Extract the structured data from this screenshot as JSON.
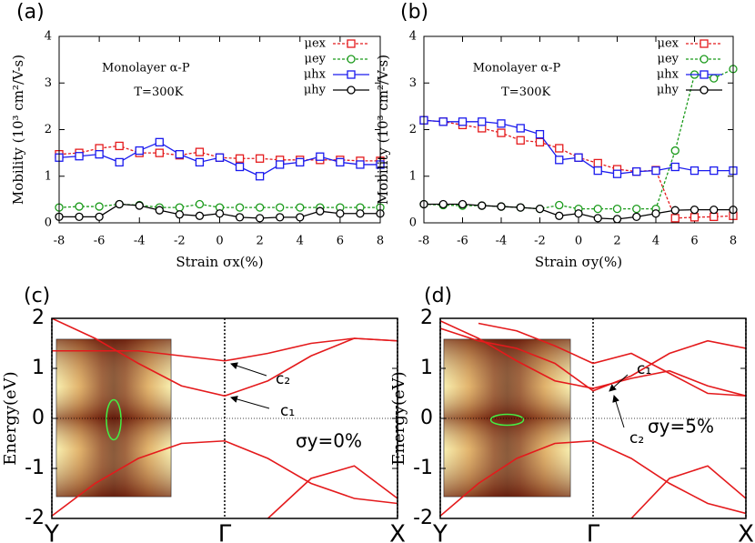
{
  "chart_data": [
    {
      "type": "line",
      "panel_label": "(a)",
      "x_label": "Strain σx(%)",
      "y_label": "Mobility (10³ cm²/V-s)",
      "annotations": [
        "Monolayer α-P",
        "T=300K"
      ],
      "legend": "upper right",
      "x": [
        -8,
        -7,
        -6,
        -5,
        -4,
        -3,
        -2,
        -1,
        0,
        1,
        2,
        3,
        4,
        5,
        6,
        7,
        8
      ],
      "xlim": [
        -8,
        8
      ],
      "xticks": [
        -8,
        -6,
        -4,
        -2,
        0,
        2,
        4,
        6,
        8
      ],
      "ylim": [
        0,
        4
      ],
      "yticks": [
        0,
        1,
        2,
        3,
        4
      ],
      "series": [
        {
          "name": "μex",
          "color": "#e41a1c",
          "marker": "square",
          "line_style": "dashed",
          "values": [
            1.47,
            1.5,
            1.6,
            1.65,
            1.5,
            1.5,
            1.45,
            1.52,
            1.4,
            1.38,
            1.38,
            1.35,
            1.35,
            1.35,
            1.35,
            1.33,
            1.33
          ]
        },
        {
          "name": "μey",
          "color": "#1a9a1a",
          "marker": "circle",
          "line_style": "dashed",
          "values": [
            0.33,
            0.35,
            0.35,
            0.4,
            0.38,
            0.33,
            0.33,
            0.4,
            0.33,
            0.33,
            0.33,
            0.33,
            0.33,
            0.33,
            0.33,
            0.33,
            0.33
          ]
        },
        {
          "name": "μhx",
          "color": "#1a1aee",
          "marker": "square",
          "line_style": "solid",
          "values": [
            1.4,
            1.43,
            1.47,
            1.3,
            1.55,
            1.73,
            1.47,
            1.3,
            1.4,
            1.2,
            1.0,
            1.25,
            1.3,
            1.42,
            1.3,
            1.25,
            1.25
          ]
        },
        {
          "name": "μhy",
          "color": "#000000",
          "marker": "circle",
          "line_style": "solid",
          "values": [
            0.13,
            0.13,
            0.13,
            0.4,
            0.37,
            0.27,
            0.18,
            0.15,
            0.2,
            0.12,
            0.1,
            0.12,
            0.12,
            0.25,
            0.2,
            0.2,
            0.2
          ]
        }
      ]
    },
    {
      "type": "line",
      "panel_label": "(b)",
      "x_label": "Strain σy(%)",
      "y_label": "Mobility (10³ cm²/V-s)",
      "annotations": [
        "Monolayer α-P",
        "T=300K"
      ],
      "legend": "upper right",
      "x": [
        -8,
        -7,
        -6,
        -5,
        -4,
        -3,
        -2,
        -1,
        0,
        1,
        2,
        3,
        4,
        5,
        6,
        7,
        8
      ],
      "xlim": [
        -8,
        8
      ],
      "xticks": [
        -8,
        -6,
        -4,
        -2,
        0,
        2,
        4,
        6,
        8
      ],
      "ylim": [
        0,
        4
      ],
      "yticks": [
        0,
        1,
        2,
        3,
        4
      ],
      "series": [
        {
          "name": "μex",
          "color": "#e41a1c",
          "marker": "square",
          "line_style": "dashed",
          "values": [
            2.2,
            2.17,
            2.1,
            2.03,
            1.93,
            1.77,
            1.73,
            1.6,
            1.4,
            1.28,
            1.15,
            1.1,
            1.13,
            0.1,
            0.12,
            0.13,
            0.15
          ]
        },
        {
          "name": "μey",
          "color": "#1a9a1a",
          "marker": "circle",
          "line_style": "dashed",
          "values": [
            0.4,
            0.38,
            0.37,
            0.37,
            0.35,
            0.33,
            0.3,
            0.38,
            0.3,
            0.3,
            0.3,
            0.3,
            0.3,
            1.55,
            3.18,
            3.1,
            3.3
          ]
        },
        {
          "name": "μhx",
          "color": "#1a1aee",
          "marker": "square",
          "line_style": "solid",
          "values": [
            2.2,
            2.17,
            2.17,
            2.17,
            2.13,
            2.03,
            1.9,
            1.35,
            1.4,
            1.12,
            1.05,
            1.1,
            1.12,
            1.2,
            1.12,
            1.12,
            1.12
          ]
        },
        {
          "name": "μhy",
          "color": "#000000",
          "marker": "circle",
          "line_style": "solid",
          "values": [
            0.4,
            0.4,
            0.4,
            0.37,
            0.35,
            0.33,
            0.3,
            0.15,
            0.2,
            0.1,
            0.08,
            0.13,
            0.2,
            0.27,
            0.28,
            0.28,
            0.28
          ]
        }
      ]
    },
    {
      "type": "bands",
      "panel_label": "(c)",
      "y_label": "Energy(eV)",
      "zero_line": true,
      "annotations": [
        "c₂",
        "c₁",
        "σy=0%"
      ],
      "x": [
        0,
        0.25,
        0.5,
        0.75,
        1,
        1.25,
        1.5,
        1.75,
        2
      ],
      "xlim": [
        0,
        2
      ],
      "xticks": [
        {
          "value": 0,
          "label": "Y"
        },
        {
          "value": 1,
          "label": "Γ"
        },
        {
          "value": 2,
          "label": "X"
        }
      ],
      "ylim": [
        -2,
        2
      ],
      "yticks": [
        -2,
        -1,
        0,
        1,
        2
      ],
      "series": [
        {
          "color": "#e41a1c",
          "values": [
            2.0,
            1.6,
            1.1,
            0.65,
            0.45,
            0.75,
            1.25,
            1.6,
            1.55
          ]
        },
        {
          "color": "#e41a1c",
          "values": [
            1.35,
            1.35,
            1.35,
            1.25,
            1.15,
            1.3,
            1.5,
            1.6,
            1.55
          ]
        },
        {
          "color": "#e41a1c",
          "values": [
            -1.95,
            -1.3,
            -0.8,
            -0.5,
            -0.45,
            -0.8,
            -1.3,
            -1.6,
            -1.7
          ]
        },
        {
          "color": "#e41a1c",
          "values": [
            null,
            null,
            null,
            null,
            null,
            -2.0,
            -1.2,
            -0.95,
            -1.6
          ]
        }
      ]
    },
    {
      "type": "bands",
      "panel_label": "(d)",
      "y_label": "Energy(eV)",
      "zero_line": true,
      "annotations": [
        "c₁",
        "c₂",
        "σy=5%"
      ],
      "x": [
        0,
        0.25,
        0.5,
        0.75,
        1,
        1.25,
        1.5,
        1.75,
        2
      ],
      "xlim": [
        0,
        2
      ],
      "xticks": [
        {
          "value": 0,
          "label": "Y"
        },
        {
          "value": 1,
          "label": "Γ"
        },
        {
          "value": 2,
          "label": "X"
        }
      ],
      "ylim": [
        -2,
        2
      ],
      "yticks": [
        -2,
        -1,
        0,
        1,
        2
      ],
      "series": [
        {
          "color": "#e41a1c",
          "values": [
            1.95,
            1.6,
            1.15,
            0.75,
            0.6,
            0.8,
            0.95,
            0.65,
            0.45
          ]
        },
        {
          "color": "#e41a1c",
          "values": [
            1.8,
            1.55,
            1.4,
            1.1,
            0.55,
            0.85,
            1.3,
            1.55,
            1.4
          ]
        },
        {
          "color": "#e41a1c",
          "values": [
            null,
            1.9,
            1.75,
            1.45,
            1.1,
            1.3,
            0.9,
            0.5,
            0.45
          ]
        },
        {
          "color": "#e41a1c",
          "values": [
            -1.95,
            -1.3,
            -0.8,
            -0.5,
            -0.45,
            -0.8,
            -1.3,
            -1.7,
            -1.9
          ]
        },
        {
          "color": "#e41a1c",
          "values": [
            null,
            null,
            null,
            null,
            null,
            -2.0,
            -1.2,
            -0.95,
            -1.6
          ]
        }
      ]
    }
  ]
}
